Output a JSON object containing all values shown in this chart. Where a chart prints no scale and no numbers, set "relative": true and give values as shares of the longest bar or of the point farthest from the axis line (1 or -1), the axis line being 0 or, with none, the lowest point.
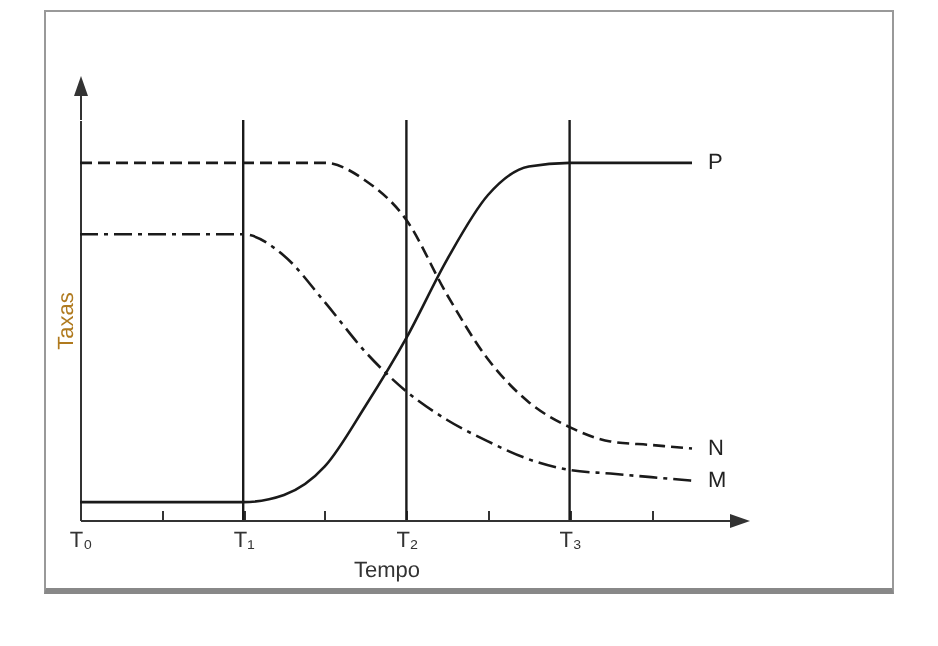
{
  "chart_data": {
    "type": "line",
    "relative": true,
    "xlabel": "Tempo",
    "ylabel": "Taxas",
    "categories": [
      "T₀",
      null,
      null,
      null,
      "T₁",
      null,
      null,
      null,
      "T₂",
      null,
      null,
      null,
      "T₃",
      null,
      null,
      null
    ],
    "grid": false,
    "legend": false,
    "marker": "none",
    "ref_lines": [
      {
        "axis": "x",
        "value": "T₁"
      },
      {
        "axis": "x",
        "value": "T₂"
      },
      {
        "axis": "x",
        "value": "T₃"
      }
    ],
    "series": [
      {
        "name": "P",
        "color": "#1a1a1a",
        "line_style": "solid",
        "values": [
          0.05,
          0.05,
          0.05,
          0.05,
          0.05,
          0.07,
          0.15,
          0.32,
          0.51,
          0.73,
          0.91,
          0.99,
          1,
          1,
          1,
          1
        ]
      },
      {
        "name": "N",
        "color": "#1a1a1a",
        "line_style": "dashed",
        "values": [
          1,
          1,
          1,
          1,
          1,
          1,
          1,
          0.95,
          0.84,
          0.63,
          0.45,
          0.33,
          0.26,
          0.22,
          0.21,
          0.2
        ]
      },
      {
        "name": "M",
        "color": "#1a1a1a",
        "line_style": "dashdot",
        "values": [
          0.8,
          0.8,
          0.8,
          0.8,
          0.8,
          0.74,
          0.61,
          0.47,
          0.36,
          0.28,
          0.22,
          0.17,
          0.14,
          0.13,
          0.12,
          0.11
        ]
      }
    ]
  }
}
